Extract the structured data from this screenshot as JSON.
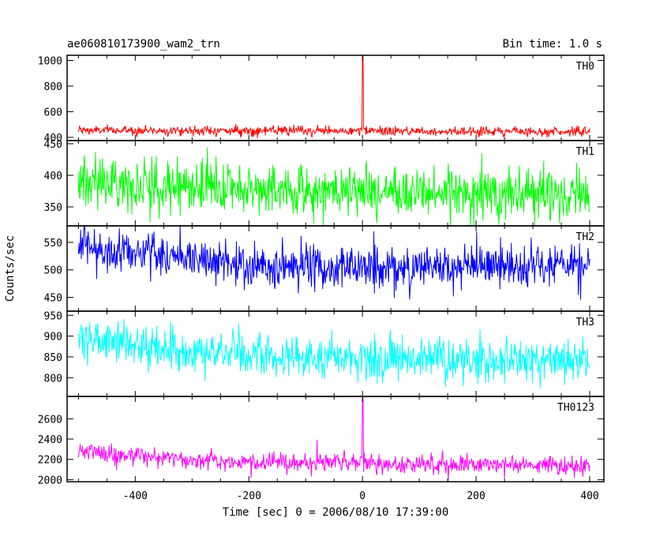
{
  "chart_data": {
    "type": "line",
    "title": "ae060810173900_wam2_trn",
    "bin_time_label": "Bin time: 1.0 s",
    "xlabel": "Time [sec] 0 = 2006/08/10 17:39:00",
    "ylabel": "Counts/sec",
    "xlim": [
      -520,
      425
    ],
    "xticks": [
      -400,
      -200,
      0,
      200,
      400
    ],
    "x_range": [
      -500,
      400
    ],
    "bin_time": 1.0,
    "panels": [
      {
        "name": "TH0",
        "color": "#ff0000",
        "ylim": [
          375,
          1040
        ],
        "yticks": [
          400,
          600,
          800,
          1000
        ],
        "baseline": [
          [
            -500,
            455
          ],
          [
            400,
            445
          ]
        ],
        "noise": 18,
        "spikes": [
          [
            0,
            1040
          ],
          [
            1,
            1040
          ]
        ]
      },
      {
        "name": "TH1",
        "color": "#00ff00",
        "ylim": [
          320,
          455
        ],
        "yticks": [
          350,
          400,
          450
        ],
        "baseline": [
          [
            -500,
            392
          ],
          [
            -350,
            383
          ],
          [
            -100,
            375
          ],
          [
            400,
            370
          ]
        ],
        "noise": 20,
        "spikes": []
      },
      {
        "name": "TH2",
        "color": "#0000ff",
        "ylim": [
          425,
          580
        ],
        "yticks": [
          450,
          500,
          550
        ],
        "baseline": [
          [
            -500,
            540
          ],
          [
            -350,
            530
          ],
          [
            -200,
            505
          ],
          [
            400,
            505
          ]
        ],
        "noise": 20,
        "spikes": []
      },
      {
        "name": "TH3",
        "color": "#00ffff",
        "ylim": [
          755,
          960
        ],
        "yticks": [
          800,
          850,
          900,
          950
        ],
        "baseline": [
          [
            -500,
            900
          ],
          [
            -420,
            880
          ],
          [
            -300,
            860
          ],
          [
            0,
            845
          ],
          [
            400,
            842
          ]
        ],
        "noise": 25,
        "spikes": []
      },
      {
        "name": "TH0123",
        "color": "#ff00ff",
        "ylim": [
          1980,
          2820
        ],
        "yticks": [
          2000,
          2200,
          2400,
          2600
        ],
        "baseline": [
          [
            -500,
            2290
          ],
          [
            -400,
            2230
          ],
          [
            -200,
            2170
          ],
          [
            400,
            2140
          ]
        ],
        "noise": 45,
        "spikes": [
          [
            -80,
            2390
          ],
          [
            0,
            2820
          ],
          [
            1,
            2820
          ]
        ]
      }
    ]
  }
}
